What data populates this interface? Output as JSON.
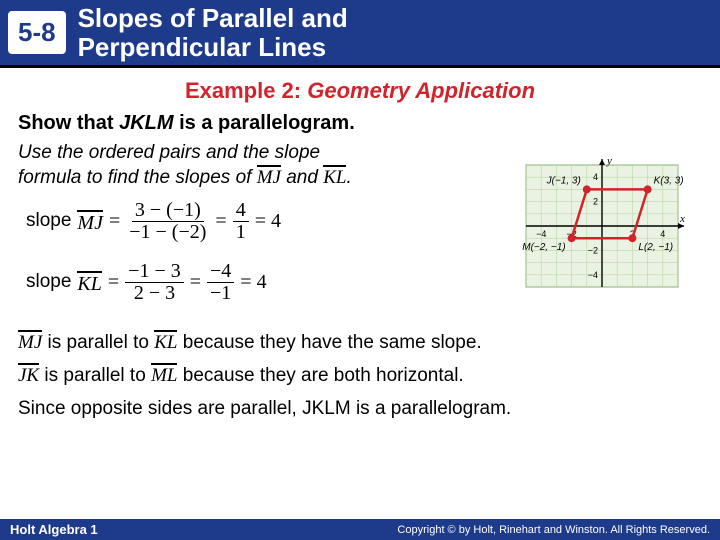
{
  "header": {
    "lesson_number": "5-8",
    "title_line1": "Slopes of Parallel and",
    "title_line2": "Perpendicular Lines"
  },
  "example": {
    "label": "Example 2:",
    "subtitle": "Geometry Application",
    "prompt_prefix": "Show that ",
    "prompt_var": "JKLM",
    "prompt_suffix": " is a parallelogram.",
    "instruction_l1": "Use the ordered pairs and the slope",
    "instruction_l2_a": "formula to find the slopes of ",
    "seg1": "MJ",
    "instruction_and": " and ",
    "seg2": "KL",
    "instruction_period": "."
  },
  "equations": {
    "mj": {
      "label": "slope ",
      "seg": "MJ",
      "eq": " = ",
      "num1": "3 − (−1)",
      "den1": "−1 − (−2)",
      "num2": "4",
      "den2": "1",
      "result": " = 4"
    },
    "kl": {
      "label": "slope ",
      "seg": "KL",
      "eq": " = ",
      "num1": "−1 − 3",
      "den1": "2 − 3",
      "num2": "−4",
      "den2": "−1",
      "result": " = 4"
    }
  },
  "graph": {
    "bg": "#eaf3e3",
    "axis_color": "#000000",
    "grid_color": "#b8d6a6",
    "point_color": "#d2232a",
    "edge_color": "#d2232a",
    "edge_width": 2.5,
    "point_radius": 4,
    "xlim": [
      -5,
      5
    ],
    "ylim": [
      -5,
      5
    ],
    "ticks": [
      -4,
      -2,
      2,
      4
    ],
    "xlabel": "x",
    "ylabel": "y",
    "label_fontsize": 11,
    "points": {
      "J": {
        "x": -1,
        "y": 3,
        "label": "J(−1, 3)"
      },
      "K": {
        "x": 3,
        "y": 3,
        "label": "K(3, 3)"
      },
      "L": {
        "x": 2,
        "y": -1,
        "label": "L(2, −1)"
      },
      "M": {
        "x": -2,
        "y": -1,
        "label": "M(−2, −1)"
      }
    },
    "edges": [
      [
        "J",
        "K"
      ],
      [
        "K",
        "L"
      ],
      [
        "L",
        "M"
      ],
      [
        "M",
        "J"
      ]
    ]
  },
  "conclusions": {
    "c1a": "MJ",
    "c1b": " is parallel to ",
    "c1c": "KL",
    "c1d": " because they have the same slope.",
    "c2a": "JK",
    "c2b": " is parallel to ",
    "c2c": "ML",
    "c2d": " because they are both horizontal.",
    "c3": "Since opposite sides are parallel, JKLM is a parallelogram."
  },
  "footer": {
    "left": "Holt Algebra 1",
    "right": "Copyright © by Holt, Rinehart and Winston. All Rights Reserved."
  }
}
